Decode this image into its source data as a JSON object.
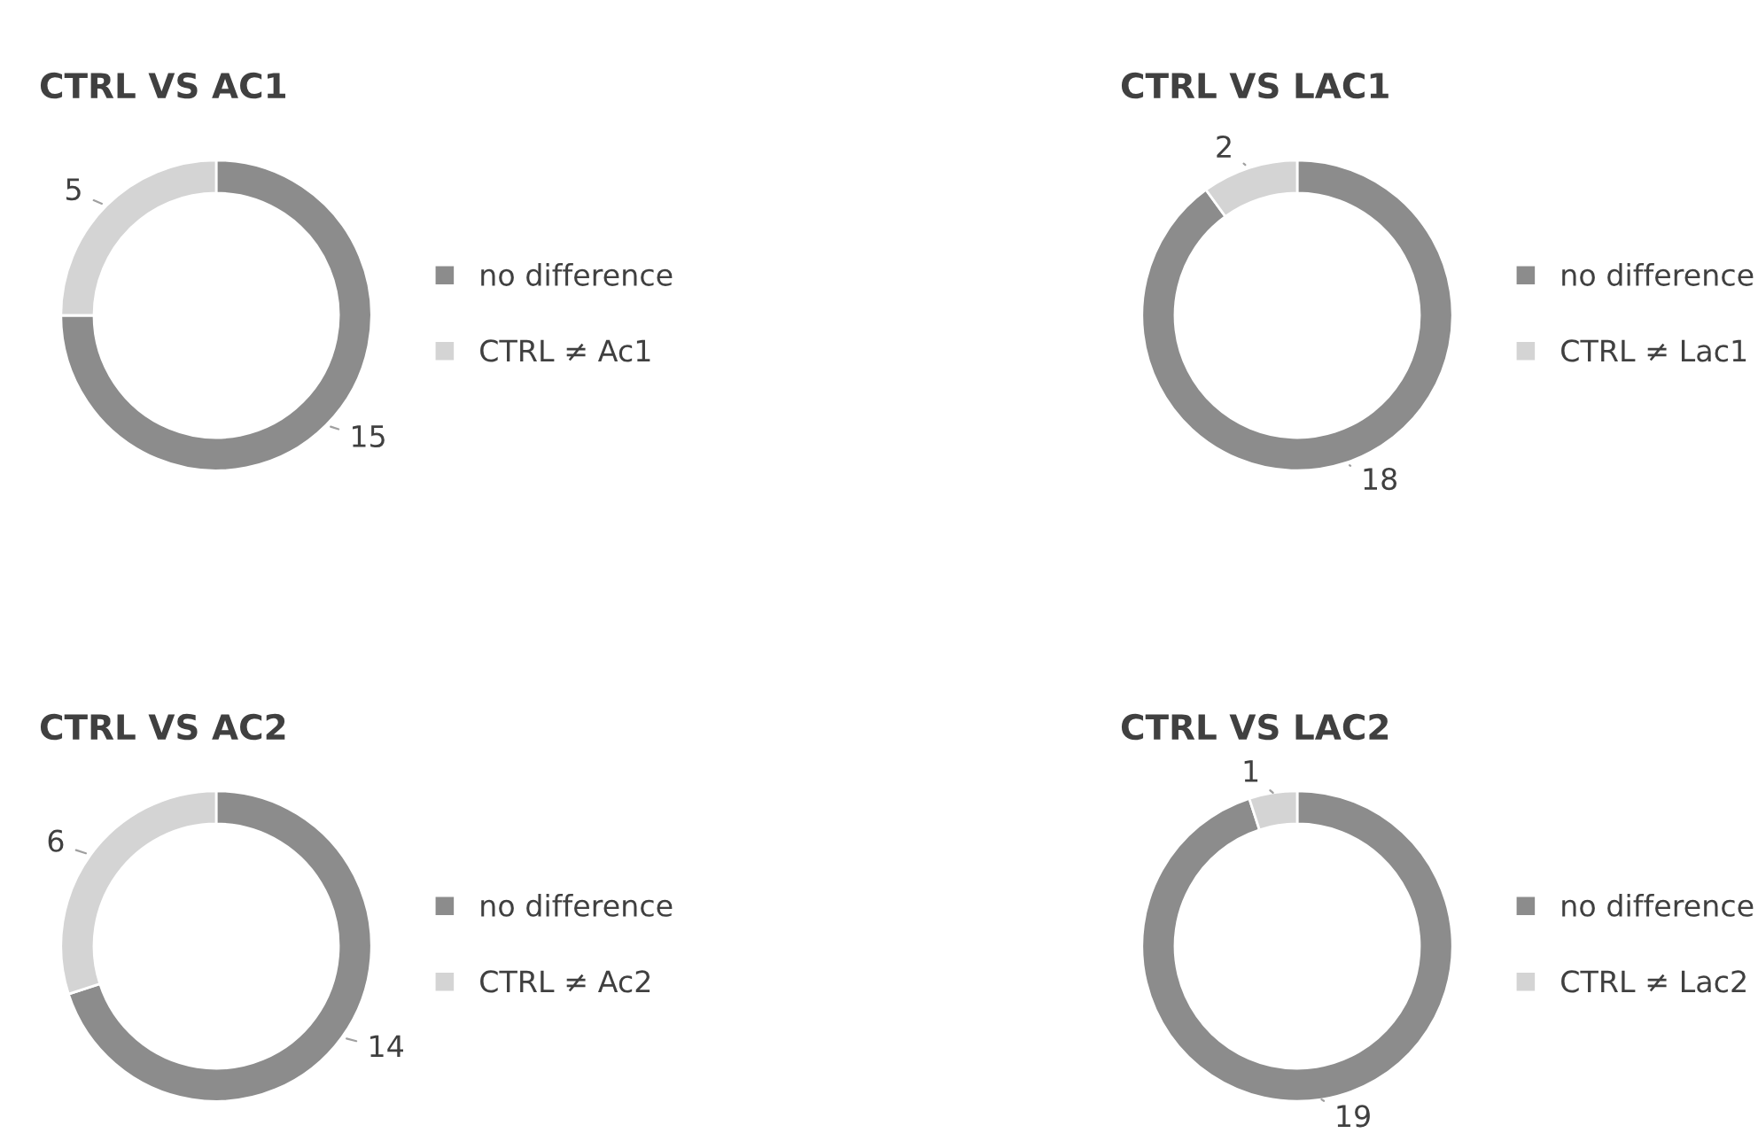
{
  "chart_data": [
    {
      "type": "donut",
      "title": "CTRL VS AC1",
      "categories": [
        "no difference",
        "CTRL ≠ Ac1"
      ],
      "values": [
        15,
        5
      ],
      "colors": [
        "#8c8c8c",
        "#d4d4d4"
      ],
      "data_labels": true,
      "legend": "right"
    },
    {
      "type": "donut",
      "title": "CTRL VS LAC1",
      "categories": [
        "no difference",
        "CTRL ≠ Lac1"
      ],
      "values": [
        18,
        2
      ],
      "colors": [
        "#8c8c8c",
        "#d4d4d4"
      ],
      "data_labels": true,
      "legend": "right"
    },
    {
      "type": "donut",
      "title": "CTRL VS AC2",
      "categories": [
        "no difference",
        "CTRL ≠ Ac2"
      ],
      "values": [
        14,
        6
      ],
      "colors": [
        "#8c8c8c",
        "#d4d4d4"
      ],
      "data_labels": true,
      "legend": "right"
    },
    {
      "type": "donut",
      "title": "CTRL VS LAC2",
      "categories": [
        "no difference",
        "CTRL ≠ Lac2"
      ],
      "values": [
        19,
        1
      ],
      "colors": [
        "#8c8c8c",
        "#d4d4d4"
      ],
      "data_labels": true,
      "legend": "right"
    }
  ]
}
